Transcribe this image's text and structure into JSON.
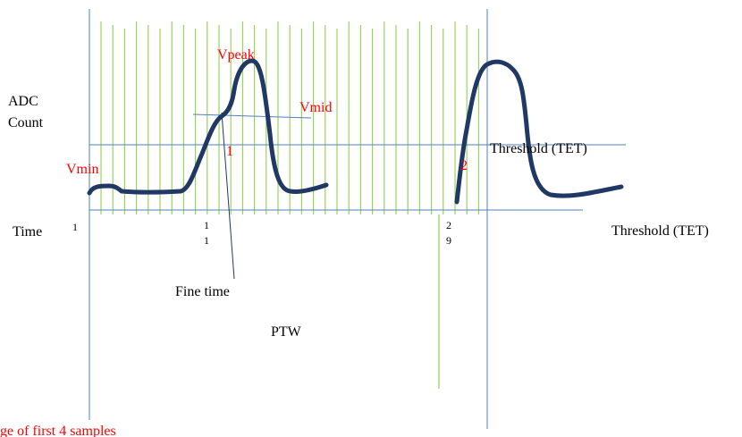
{
  "colors": {
    "axis": "#4f81bd",
    "grid": "#92d050",
    "pulse": "#203864",
    "text": "#000000",
    "highlight": "#ff0000"
  },
  "labels": {
    "adc_count_line1": "ADC",
    "adc_count_line2": "Count",
    "time": "Time",
    "threshold_upper": "Threshold (TET)",
    "threshold_lower": "Threshold (TET)",
    "vpeak": "Vpeak",
    "vmid": "Vmid",
    "vmin": "Vmin",
    "crossing_1": "1",
    "crossing_2": "2",
    "tick_1": "1",
    "tick_11_top": "1",
    "tick_11_bottom": "1",
    "tick_29_top": "2",
    "tick_29_bottom": "9",
    "fine_time": "Fine time",
    "ptw": "PTW",
    "footnote": "ge of first 4 samples"
  }
}
